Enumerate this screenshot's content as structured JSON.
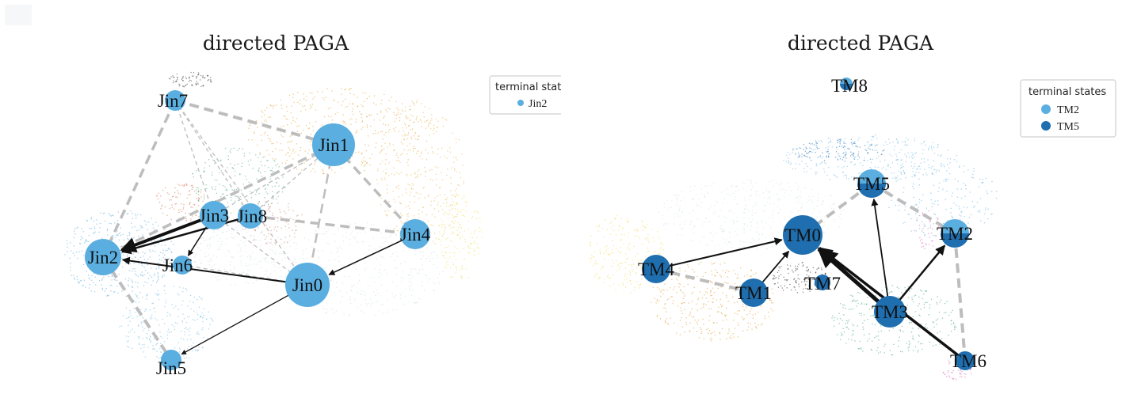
{
  "panels": [
    {
      "title": "directed PAGA",
      "legend": {
        "title": "terminal states",
        "items": [
          {
            "label": "Jin2",
            "color": "#5aaee0"
          }
        ]
      },
      "colors": {
        "node": "#5aaee0",
        "node_dark": "#1f6fb0",
        "arrow": "#111111",
        "dashed": "#bdbdbd"
      },
      "nodes": [
        {
          "id": "Jin0",
          "label": "Jin0"
        },
        {
          "id": "Jin1",
          "label": "Jin1"
        },
        {
          "id": "Jin2",
          "label": "Jin2"
        },
        {
          "id": "Jin3",
          "label": "Jin3"
        },
        {
          "id": "Jin4",
          "label": "Jin4"
        },
        {
          "id": "Jin5",
          "label": "Jin5"
        },
        {
          "id": "Jin6",
          "label": "Jin6"
        },
        {
          "id": "Jin7",
          "label": "Jin7"
        },
        {
          "id": "Jin8",
          "label": "Jin8"
        }
      ],
      "directed_edges": [
        {
          "from": "Jin3",
          "to": "Jin2"
        },
        {
          "from": "Jin8",
          "to": "Jin2"
        },
        {
          "from": "Jin0",
          "to": "Jin2"
        },
        {
          "from": "Jin3",
          "to": "Jin6"
        },
        {
          "from": "Jin4",
          "to": "Jin0"
        },
        {
          "from": "Jin0",
          "to": "Jin5"
        }
      ],
      "undirected_edges": [
        {
          "from": "Jin7",
          "to": "Jin1"
        },
        {
          "from": "Jin7",
          "to": "Jin2"
        },
        {
          "from": "Jin7",
          "to": "Jin3"
        },
        {
          "from": "Jin7",
          "to": "Jin8"
        },
        {
          "from": "Jin7",
          "to": "Jin0"
        },
        {
          "from": "Jin1",
          "to": "Jin2"
        },
        {
          "from": "Jin1",
          "to": "Jin3"
        },
        {
          "from": "Jin1",
          "to": "Jin8"
        },
        {
          "from": "Jin1",
          "to": "Jin0"
        },
        {
          "from": "Jin1",
          "to": "Jin4"
        },
        {
          "from": "Jin8",
          "to": "Jin4"
        },
        {
          "from": "Jin3",
          "to": "Jin0"
        },
        {
          "from": "Jin2",
          "to": "Jin5"
        },
        {
          "from": "Jin6",
          "to": "Jin0"
        }
      ]
    },
    {
      "title": "directed PAGA",
      "legend": {
        "title": "terminal states",
        "items": [
          {
            "label": "TM2",
            "color": "#5aaee0"
          },
          {
            "label": "TM5",
            "color": "#1f6fb0"
          }
        ]
      },
      "colors": {
        "node": "#5aaee0",
        "node_dark": "#1f6fb0",
        "arrow": "#111111",
        "dashed": "#bdbdbd"
      },
      "nodes": [
        {
          "id": "TM0",
          "label": "TM0"
        },
        {
          "id": "TM1",
          "label": "TM1"
        },
        {
          "id": "TM2",
          "label": "TM2"
        },
        {
          "id": "TM3",
          "label": "TM3"
        },
        {
          "id": "TM4",
          "label": "TM4"
        },
        {
          "id": "TM5",
          "label": "TM5"
        },
        {
          "id": "TM6",
          "label": "TM6"
        },
        {
          "id": "TM7",
          "label": "TM7"
        },
        {
          "id": "TM8",
          "label": "TM8"
        }
      ],
      "directed_edges": [
        {
          "from": "TM4",
          "to": "TM0"
        },
        {
          "from": "TM1",
          "to": "TM0"
        },
        {
          "from": "TM3",
          "to": "TM0"
        },
        {
          "from": "TM6",
          "to": "TM0"
        },
        {
          "from": "TM3",
          "to": "TM5"
        },
        {
          "from": "TM3",
          "to": "TM2"
        }
      ],
      "undirected_edges": [
        {
          "from": "TM4",
          "to": "TM1"
        },
        {
          "from": "TM0",
          "to": "TM5"
        },
        {
          "from": "TM5",
          "to": "TM2"
        },
        {
          "from": "TM2",
          "to": "TM6"
        }
      ]
    }
  ]
}
